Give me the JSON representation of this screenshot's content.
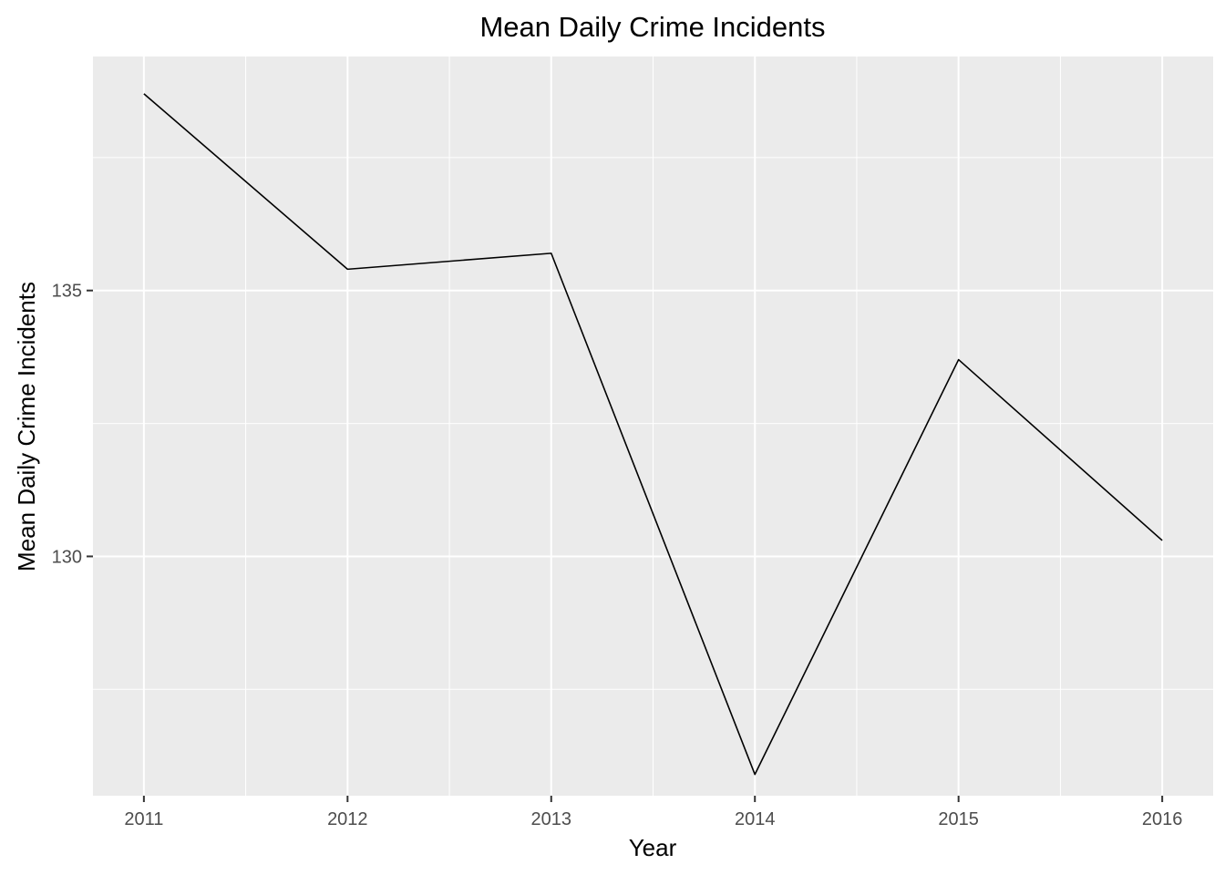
{
  "chart_data": {
    "type": "line",
    "title": "Mean Daily Crime Incidents",
    "xlabel": "Year",
    "ylabel": "Mean Daily Crime Incidents",
    "x": [
      2011,
      2012,
      2013,
      2014,
      2015,
      2016
    ],
    "xticks": [
      "2011",
      "2012",
      "2013",
      "2014",
      "2015",
      "2016"
    ],
    "yticks": [
      "130",
      "135"
    ],
    "series": [
      {
        "values": [
          138.7,
          135.4,
          135.7,
          125.9,
          133.7,
          130.3
        ],
        "color": "#000000"
      }
    ],
    "xlim": [
      2010.75,
      2016.25
    ],
    "ylim": [
      125.5,
      139.4
    ],
    "grid": true,
    "background": "#ebebeb",
    "grid_color": "#ffffff"
  }
}
